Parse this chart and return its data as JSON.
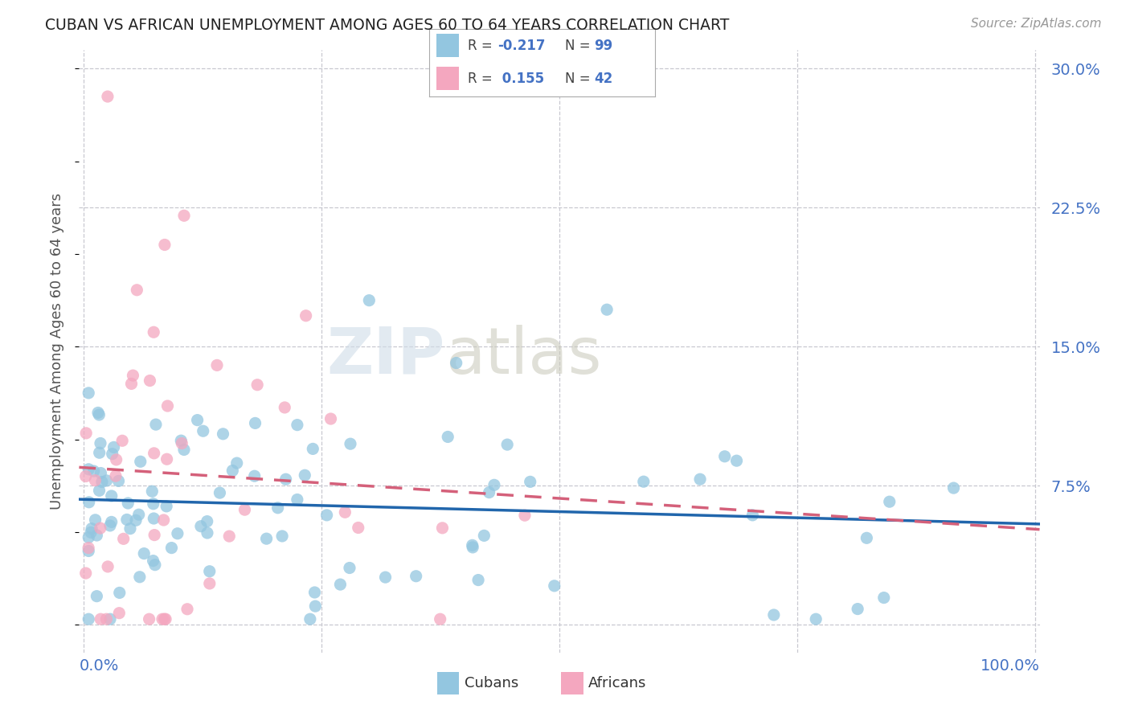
{
  "title": "CUBAN VS AFRICAN UNEMPLOYMENT AMONG AGES 60 TO 64 YEARS CORRELATION CHART",
  "source": "Source: ZipAtlas.com",
  "ylabel": "Unemployment Among Ages 60 to 64 years",
  "color_cubans": "#93c6e0",
  "color_africans": "#f4a7bf",
  "color_line_cubans": "#2166ac",
  "color_line_africans": "#d4607a",
  "color_ticks": "#4472c4",
  "legend_r_cubans": "-0.217",
  "legend_n_cubans": "99",
  "legend_r_africans": "0.155",
  "legend_n_africans": "42",
  "xlim": [
    0,
    100
  ],
  "ylim": [
    0,
    30
  ],
  "ytick_vals": [
    0,
    7.5,
    15.0,
    22.5,
    30.0
  ],
  "ytick_labels": [
    "",
    "7.5%",
    "15.0%",
    "22.5%",
    "30.0%"
  ],
  "xtick_labels": [
    "0.0%",
    "100.0%"
  ],
  "watermark_zip": "ZIP",
  "watermark_atlas": "atlas",
  "seed_cubans": 42,
  "seed_africans": 99,
  "n_cubans": 99,
  "n_africans": 42
}
